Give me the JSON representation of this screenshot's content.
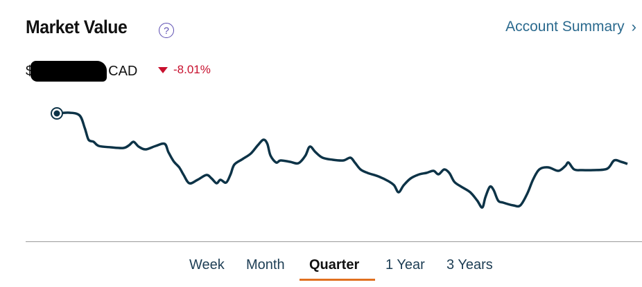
{
  "header": {
    "title": "Market Value",
    "help_icon": "?",
    "account_summary": "Account Summary",
    "chevron": "›"
  },
  "value": {
    "prefix": "$",
    "currency": "CAD",
    "change": "-8.01%",
    "change_direction": "down"
  },
  "colors": {
    "line": "#0d3347",
    "negative": "#c8102e",
    "link": "#2b6a8e",
    "accent": "#e07020"
  },
  "tabs": [
    {
      "label": "Week",
      "active": false
    },
    {
      "label": "Month",
      "active": false
    },
    {
      "label": "Quarter",
      "active": true
    },
    {
      "label": "1 Year",
      "active": false
    },
    {
      "label": "3 Years",
      "active": false
    }
  ],
  "chart_data": {
    "type": "line",
    "title": "",
    "xlabel": "",
    "ylabel": "",
    "grid": false,
    "note": "relative values, unlabeled axes",
    "x": [
      0,
      2,
      3.6,
      4.4,
      5,
      5.8,
      6.6,
      8.5,
      10.5,
      11.4,
      12.1,
      12.9,
      14,
      15.6,
      17,
      17.6,
      18.4,
      19.3,
      20,
      20.9,
      22.2,
      23.6,
      24.4,
      25.2,
      25.8,
      26.7,
      27.4,
      28,
      29.3,
      30.6,
      31.7,
      32.6,
      33.2,
      33.7,
      34.6,
      35.3,
      36.8,
      38.1,
      39.2,
      39.9,
      40.8,
      41.9,
      43.5,
      45.2,
      46.3,
      47,
      47.9,
      49,
      50.7,
      52.3,
      53.2,
      53.9,
      54.7,
      55.8,
      57.2,
      58.3,
      59.4,
      60.2,
      61.1,
      61.9,
      62.7,
      63.8,
      65.2,
      66.3,
      67.1,
      67.6,
      68.3,
      68.9,
      69.6,
      70.4,
      72,
      73.1,
      74.2,
      75.1,
      76.1,
      77.5,
      79.1,
      80.2,
      80.7,
      81.6,
      82.9,
      84.6,
      86.8,
      87.9,
      89,
      90
    ],
    "values": [
      186,
      187,
      183,
      165,
      148,
      145,
      139,
      137,
      136,
      140,
      145,
      138,
      134,
      139,
      142,
      130,
      117,
      108,
      97,
      85,
      90,
      97,
      92,
      85,
      90,
      86,
      98,
      112,
      120,
      128,
      140,
      148,
      142,
      125,
      115,
      118,
      116,
      114,
      125,
      138,
      130,
      122,
      119,
      118,
      122,
      115,
      105,
      100,
      95,
      88,
      82,
      72,
      82,
      92,
      98,
      100,
      103,
      98,
      105,
      100,
      87,
      80,
      72,
      60,
      50,
      65,
      80,
      75,
      60,
      57,
      53,
      53,
      70,
      90,
      105,
      108,
      103,
      110,
      115,
      105,
      104,
      104,
      106,
      118,
      116,
      113
    ]
  }
}
